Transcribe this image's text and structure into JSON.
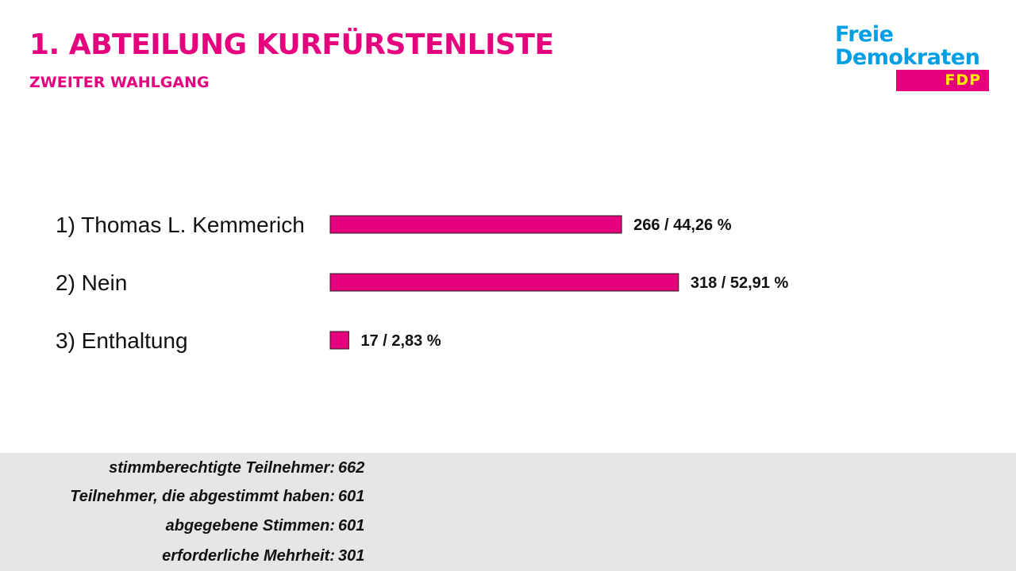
{
  "header": {
    "title": "1. ABTEILUNG KURFÜRSTENLISTE",
    "subtitle": "ZWEITER WAHLGANG"
  },
  "logo": {
    "line1": "Freie",
    "line2": "Demokraten",
    "badge": "FDP",
    "colors": {
      "blue": "#009ee3",
      "magenta": "#e5007d",
      "yellow": "#ffed00"
    }
  },
  "chart_data": {
    "type": "bar",
    "orientation": "horizontal",
    "categories": [
      "1) Thomas L. Kemmerich",
      "2) Nein",
      "3) Enthaltung"
    ],
    "values": [
      266,
      318,
      17
    ],
    "value_labels": [
      "266 / 44,26 %",
      "318 / 52,91 %",
      "17 / 2,83 %"
    ],
    "bar_color": "#e5007d",
    "grid": false
  },
  "stats": [
    {
      "label": "stimmberechtigte Teilnehmer:",
      "value": "662"
    },
    {
      "label": "Teilnehmer, die abgestimmt haben:",
      "value": "601"
    },
    {
      "label": "abgegebene Stimmen:",
      "value": "601"
    },
    {
      "label": "erforderliche Mehrheit:",
      "value": "301"
    }
  ]
}
